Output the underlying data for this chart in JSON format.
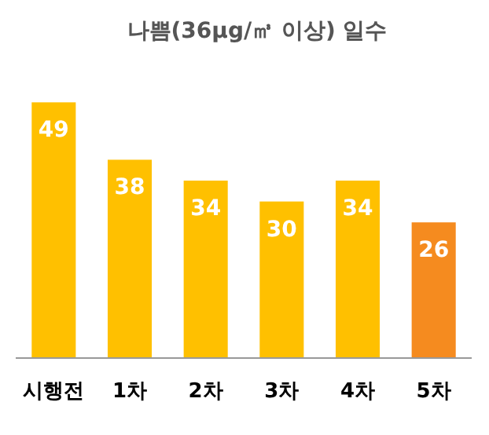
{
  "chart_data": {
    "type": "bar",
    "title": "나쁨(36μg/㎥ 이상) 일수",
    "categories": [
      "시행전",
      "1차",
      "2차",
      "3차",
      "4차",
      "5차"
    ],
    "values": [
      49,
      38,
      34,
      30,
      34,
      26
    ],
    "colors": [
      "#ffc000",
      "#ffc000",
      "#ffc000",
      "#ffc000",
      "#ffc000",
      "#f58b1f"
    ],
    "data_labels": true
  }
}
